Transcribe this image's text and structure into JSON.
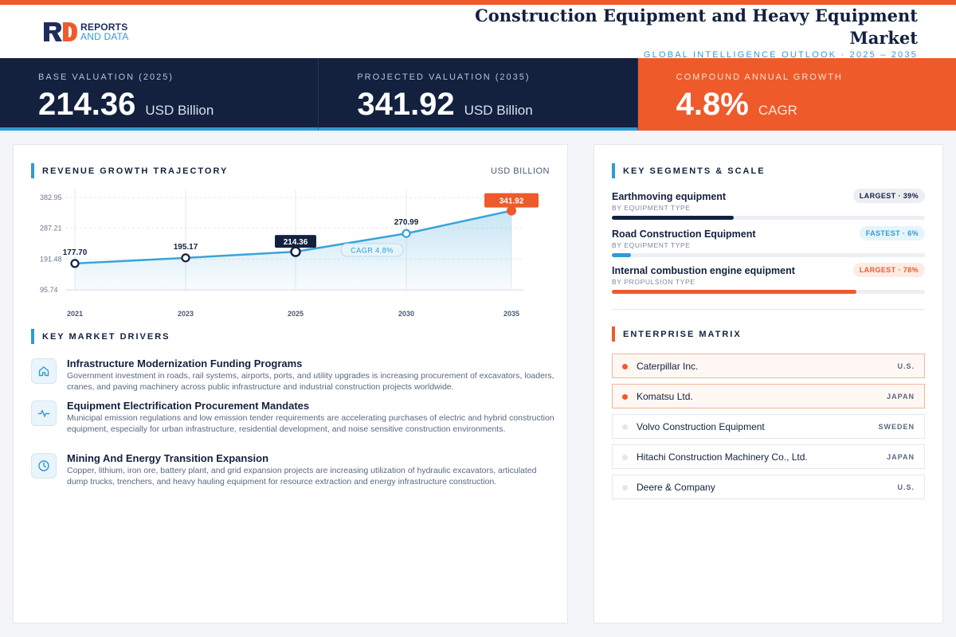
{
  "brand": {
    "line1": "REPORTS",
    "line2": "AND DATA"
  },
  "header": {
    "title": "Construction Equipment and Heavy Equipment Market",
    "subtitle": "GLOBAL INTELLIGENCE OUTLOOK  ·  2025 – 2035"
  },
  "kpis": [
    {
      "label": "BASE VALUATION (2025)",
      "value": "214.36",
      "unit": "USD Billion"
    },
    {
      "label": "PROJECTED VALUATION (2035)",
      "value": "341.92",
      "unit": "USD Billion"
    },
    {
      "label": "COMPOUND ANNUAL GROWTH",
      "value": "4.8%",
      "unit": "CAGR"
    }
  ],
  "revenue": {
    "title": "REVENUE GROWTH TRAJECTORY",
    "unit_label": "USD BILLION",
    "cagr_badge": "CAGR 4.8%"
  },
  "chart_data": {
    "type": "area",
    "x": [
      "2021",
      "2023",
      "2025",
      "2030",
      "2035"
    ],
    "values": [
      177.7,
      195.17,
      214.36,
      270.99,
      341.92
    ],
    "labels": [
      "177.70",
      "195.17",
      "214.36",
      "270.99",
      "341.92"
    ],
    "yticks": [
      95.74,
      191.48,
      287.21,
      382.95
    ],
    "ytick_labels": [
      "95.74",
      "191.48",
      "287.21",
      "382.95"
    ],
    "ylim": [
      95.74,
      382.95
    ],
    "highlight_base": "2025",
    "highlight_projected": "2035",
    "grid": true,
    "colors": {
      "line": "#3aa3d8",
      "dark": "#13213f",
      "accent": "#ee5a2a"
    }
  },
  "drivers": {
    "title": "KEY MARKET DRIVERS",
    "items": [
      {
        "icon": "home-icon",
        "title": "Infrastructure Modernization Funding Programs",
        "desc": "Government investment in roads, rail systems, airports, ports, and utility upgrades is increasing procurement of excavators, loaders, cranes, and paving machinery across public infrastructure and industrial construction projects worldwide."
      },
      {
        "icon": "pulse-icon",
        "title": "Equipment Electrification Procurement Mandates",
        "desc": "Municipal emission regulations and low emission tender requirements are accelerating purchases of electric and hybrid construction equipment, especially for urban infrastructure, residential development, and noise sensitive construction environments."
      },
      {
        "icon": "clock-icon",
        "title": "Mining And Energy Transition Expansion",
        "desc": "Copper, lithium, iron ore, battery plant, and grid expansion projects are increasing utilization of hydraulic excavators, articulated dump trucks, trenchers, and heavy hauling equipment for resource extraction and energy infrastructure construction."
      }
    ]
  },
  "segments": {
    "title": "KEY SEGMENTS & SCALE",
    "items": [
      {
        "name": "Earthmoving equipment",
        "sub": "BY EQUIPMENT TYPE",
        "badge": "LARGEST · 39%",
        "share": 0.39,
        "color": "#13213f"
      },
      {
        "name": "Road Construction Equipment",
        "sub": "BY EQUIPMENT TYPE",
        "badge": "FASTEST · 6%",
        "share": 0.06,
        "color": "#2e9bd4"
      },
      {
        "name": "Internal combustion engine equipment",
        "sub": "BY PROPULSION TYPE",
        "badge": "LARGEST · 78%",
        "share": 0.78,
        "color": "#ee5a2a"
      }
    ]
  },
  "matrix": {
    "title": "ENTERPRISE MATRIX",
    "items": [
      {
        "name": "Caterpillar Inc.",
        "country": "U.S.",
        "highlight": true
      },
      {
        "name": "Komatsu Ltd.",
        "country": "JAPAN",
        "highlight": true
      },
      {
        "name": "Volvo Construction Equipment",
        "country": "SWEDEN",
        "highlight": false
      },
      {
        "name": "Hitachi Construction Machinery Co., Ltd.",
        "country": "JAPAN",
        "highlight": false
      },
      {
        "name": "Deere & Company",
        "country": "U.S.",
        "highlight": false
      }
    ]
  }
}
